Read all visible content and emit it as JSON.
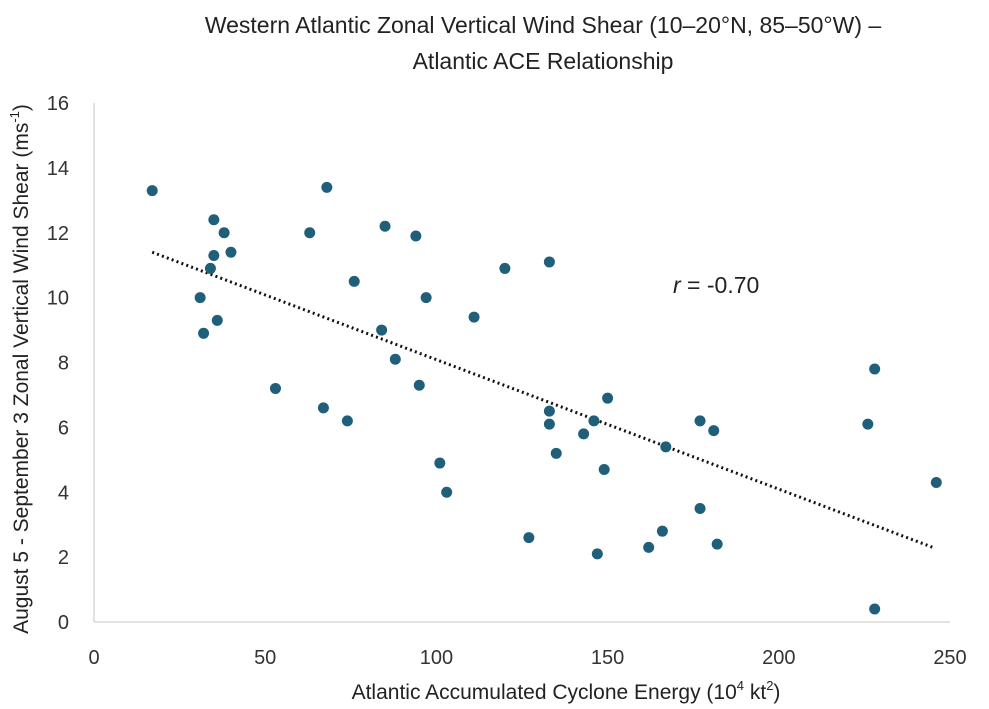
{
  "chart_data": {
    "type": "scatter",
    "title_line1": "Western Atlantic Zonal Vertical Wind Shear (10–20°N, 85–50°W) –",
    "title_line2": "Atlantic ACE Relationship",
    "xlabel_main": "Atlantic Accumulated Cyclone Energy (10",
    "xlabel_sup1": "4",
    "xlabel_mid": " kt",
    "xlabel_sup2": "2",
    "xlabel_end": ")",
    "ylabel_main": "August 5 - September 3 Zonal Vertical Wind Shear (ms",
    "ylabel_sup": "-1",
    "ylabel_end": ")",
    "xlim": [
      0,
      250
    ],
    "ylim": [
      0,
      16
    ],
    "x_ticks": [
      0,
      50,
      100,
      150,
      200,
      250
    ],
    "y_ticks": [
      0,
      2,
      4,
      6,
      8,
      10,
      12,
      14,
      16
    ],
    "grid": false,
    "marker_color": "#1f5f7a",
    "trendline": {
      "style": "dotted",
      "color": "#111111",
      "x_start": 17,
      "y_start": 11.4,
      "x_end": 245,
      "y_end": 2.3
    },
    "annotation": {
      "r_symbol": "r",
      "r_text": " = -0.70"
    },
    "points": [
      {
        "x": 17,
        "y": 13.3
      },
      {
        "x": 31,
        "y": 10.0
      },
      {
        "x": 32,
        "y": 8.9
      },
      {
        "x": 34,
        "y": 10.9
      },
      {
        "x": 35,
        "y": 12.4
      },
      {
        "x": 35,
        "y": 11.3
      },
      {
        "x": 36,
        "y": 9.3
      },
      {
        "x": 38,
        "y": 12.0
      },
      {
        "x": 40,
        "y": 11.4
      },
      {
        "x": 53,
        "y": 7.2
      },
      {
        "x": 63,
        "y": 12.0
      },
      {
        "x": 67,
        "y": 6.6
      },
      {
        "x": 68,
        "y": 13.4
      },
      {
        "x": 74,
        "y": 6.2
      },
      {
        "x": 76,
        "y": 10.5
      },
      {
        "x": 84,
        "y": 9.0
      },
      {
        "x": 85,
        "y": 12.2
      },
      {
        "x": 88,
        "y": 8.1
      },
      {
        "x": 94,
        "y": 11.9
      },
      {
        "x": 95,
        "y": 7.3
      },
      {
        "x": 97,
        "y": 10.0
      },
      {
        "x": 101,
        "y": 4.9
      },
      {
        "x": 103,
        "y": 4.0
      },
      {
        "x": 111,
        "y": 9.4
      },
      {
        "x": 120,
        "y": 10.9
      },
      {
        "x": 127,
        "y": 2.6
      },
      {
        "x": 133,
        "y": 11.1
      },
      {
        "x": 133,
        "y": 6.5
      },
      {
        "x": 133,
        "y": 6.1
      },
      {
        "x": 135,
        "y": 5.2
      },
      {
        "x": 143,
        "y": 5.8
      },
      {
        "x": 146,
        "y": 6.2
      },
      {
        "x": 147,
        "y": 2.1
      },
      {
        "x": 149,
        "y": 4.7
      },
      {
        "x": 150,
        "y": 6.9
      },
      {
        "x": 162,
        "y": 2.3
      },
      {
        "x": 166,
        "y": 2.8
      },
      {
        "x": 167,
        "y": 5.4
      },
      {
        "x": 177,
        "y": 6.2
      },
      {
        "x": 177,
        "y": 3.5
      },
      {
        "x": 181,
        "y": 5.9
      },
      {
        "x": 182,
        "y": 2.4
      },
      {
        "x": 226,
        "y": 6.1
      },
      {
        "x": 228,
        "y": 7.8
      },
      {
        "x": 228,
        "y": 0.4
      },
      {
        "x": 246,
        "y": 4.3
      }
    ]
  }
}
